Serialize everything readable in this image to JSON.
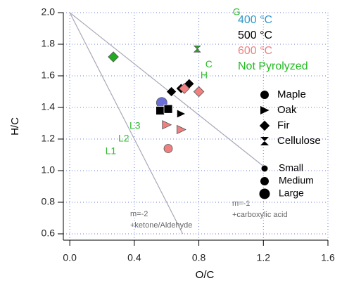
{
  "chart_data": {
    "type": "scatter",
    "xlabel": "O/C",
    "ylabel": "H/C",
    "xlim": [
      -0.04,
      1.6
    ],
    "ylim": [
      0.56,
      2.0
    ],
    "xticks": [
      {
        "value": 0,
        "label": "0.0"
      },
      0.4,
      0.8,
      1.2,
      1.6
    ],
    "yticks": [
      0.6,
      0.8,
      {
        "value": 1,
        "label": "1.0"
      },
      1.2,
      1.4,
      1.6,
      1.8,
      {
        "value": 2,
        "label": "2.0"
      }
    ],
    "grid": true,
    "grid_color": "#6a7fd8",
    "points": [
      {
        "x": 0.27,
        "y": 1.72,
        "color": "#22aa22",
        "shape": "diamond",
        "size": "medium"
      },
      {
        "x": 0.79,
        "y": 1.77,
        "color": "#22aa22",
        "shape": "hourglass",
        "size": "small"
      },
      {
        "x": 0.57,
        "y": 1.43,
        "color": "#6a6fd8",
        "shape": "circle",
        "size": "large"
      },
      {
        "x": 0.56,
        "y": 1.38,
        "color": "#000000",
        "shape": "square",
        "size": "medium"
      },
      {
        "x": 0.61,
        "y": 1.39,
        "color": "#000000",
        "shape": "square",
        "size": "medium"
      },
      {
        "x": 0.63,
        "y": 1.5,
        "color": "#000000",
        "shape": "diamond",
        "size": "medium"
      },
      {
        "x": 0.69,
        "y": 1.52,
        "color": "#000000",
        "shape": "diamond",
        "size": "medium"
      },
      {
        "x": 0.74,
        "y": 1.55,
        "color": "#000000",
        "shape": "diamond",
        "size": "medium"
      },
      {
        "x": 0.69,
        "y": 1.36,
        "color": "#000000",
        "shape": "triangle",
        "size": "medium"
      },
      {
        "x": 0.61,
        "y": 1.14,
        "color": "#f08080",
        "shape": "circle",
        "size": "medium"
      },
      {
        "x": 0.6,
        "y": 1.29,
        "color": "#f08080",
        "shape": "triangle",
        "size": "medium"
      },
      {
        "x": 0.69,
        "y": 1.26,
        "color": "#f08080",
        "shape": "triangle",
        "size": "medium"
      },
      {
        "x": 0.71,
        "y": 1.52,
        "color": "#f08080",
        "shape": "diamond",
        "size": "medium"
      },
      {
        "x": 0.8,
        "y": 1.5,
        "color": "#f08080",
        "shape": "diamond",
        "size": "medium"
      }
    ],
    "reference_lines": [
      {
        "x": [
          0,
          0.7
        ],
        "y": [
          2.0,
          0.6
        ],
        "labels": [
          "m=-2",
          "+ketone/Aldehyde"
        ]
      },
      {
        "x": [
          0,
          1.21
        ],
        "y": [
          2.0,
          1.02
        ],
        "labels": [
          "m=-1",
          "+carboxylic acid"
        ]
      }
    ],
    "line_color": "#a9a9b9",
    "annotation_color": "#33bb33",
    "annotations": [
      {
        "text": "G",
        "x": 1.01,
        "y": 2.0
      },
      {
        "text": "C",
        "x": 0.84,
        "y": 1.67
      },
      {
        "text": "H",
        "x": 0.81,
        "y": 1.6
      },
      {
        "text": "L3",
        "x": 0.37,
        "y": 1.28
      },
      {
        "text": "L2",
        "x": 0.3,
        "y": 1.2
      },
      {
        "text": "L1",
        "x": 0.22,
        "y": 1.12
      }
    ],
    "temperature_legend": [
      {
        "label": "400 °C",
        "color": "#3399cc"
      },
      {
        "label": "500 °C",
        "color": "#000000"
      },
      {
        "label": "600 °C",
        "color": "#f08080"
      },
      {
        "label": "Not Pyrolyzed",
        "color": "#22bb22"
      }
    ],
    "shape_legend": [
      {
        "label": "Maple",
        "shape": "circle"
      },
      {
        "label": "Oak",
        "shape": "triangle"
      },
      {
        "label": "Fir",
        "shape": "diamond"
      },
      {
        "label": "Cellulose",
        "shape": "hourglass"
      }
    ],
    "size_legend": [
      {
        "label": "Small",
        "size": "small"
      },
      {
        "label": "Medium",
        "size": "medium"
      },
      {
        "label": "Large",
        "size": "large"
      }
    ]
  }
}
